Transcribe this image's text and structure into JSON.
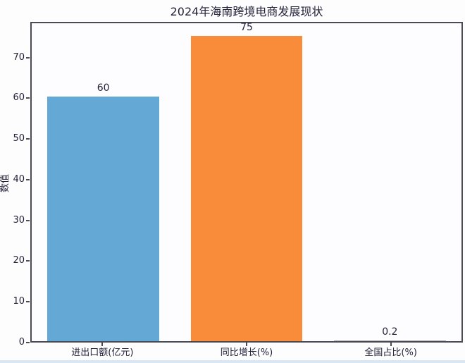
{
  "page": {
    "background_color": "#fdfdfe",
    "bottom_stripe_color": "#d9e6f3"
  },
  "chart_data": {
    "type": "bar",
    "title": "2024年海南跨境电商发展现状",
    "ylabel": "数值",
    "xlabel": "",
    "categories": [
      "进出口额(亿元)",
      "同比增长(%)",
      "全国占比(%)"
    ],
    "values": [
      60,
      75,
      0.2
    ],
    "value_labels": [
      "60",
      "75",
      "0.2"
    ],
    "bar_colors": [
      "#64a8d5",
      "#f88c3b",
      "#a5a5a5"
    ],
    "ylim": [
      0,
      78.75
    ],
    "yticks": [
      0,
      10,
      20,
      30,
      40,
      50,
      60,
      70
    ],
    "grid": false,
    "legend": false,
    "spine_color": "#4b4b55",
    "text_color": "#23233a"
  }
}
